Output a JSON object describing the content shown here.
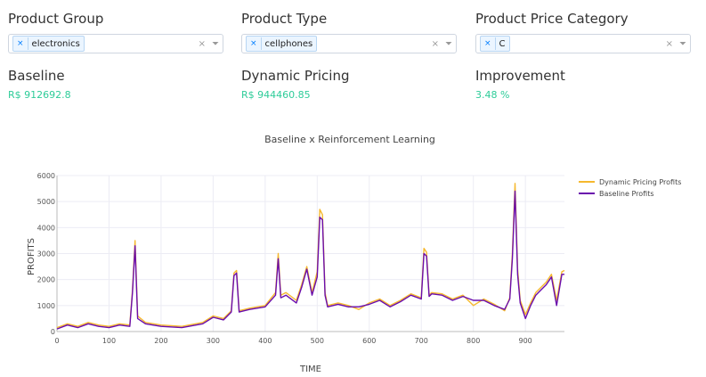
{
  "filters": [
    {
      "label": "Product Group",
      "selected": "electronics"
    },
    {
      "label": "Product Type",
      "selected": "cellphones"
    },
    {
      "label": "Product Price Category",
      "selected": "C"
    }
  ],
  "metrics": [
    {
      "label": "Baseline",
      "value": "R$ 912692.8"
    },
    {
      "label": "Dynamic Pricing",
      "value": "R$ 944460.85"
    },
    {
      "label": "Improvement",
      "value": "3.48 %"
    }
  ],
  "icons": {
    "remove": "×",
    "clear": "×",
    "dropdown": "⏷"
  },
  "colors": {
    "metric_value": "#2ecc99",
    "dynamic": "#f5b82e",
    "baseline": "#6a0dad"
  },
  "chart_data": {
    "type": "line",
    "title": "Baseline x Reinforcement Learning",
    "xlabel": "TIME",
    "ylabel": "PROFITS",
    "xlim": [
      0,
      975
    ],
    "ylim": [
      0,
      6000
    ],
    "xticks": [
      0,
      100,
      200,
      300,
      400,
      500,
      600,
      700,
      800,
      900
    ],
    "yticks": [
      0,
      1000,
      2000,
      3000,
      4000,
      5000,
      6000
    ],
    "grid": true,
    "legend": "top-right",
    "series": [
      {
        "name": "Dynamic Pricing Profits",
        "color": "#f5b82e",
        "x": [
          0,
          20,
          40,
          60,
          80,
          100,
          120,
          140,
          145,
          150,
          155,
          170,
          200,
          240,
          280,
          300,
          320,
          335,
          340,
          345,
          350,
          370,
          400,
          420,
          425,
          430,
          440,
          460,
          470,
          480,
          490,
          500,
          505,
          510,
          515,
          520,
          540,
          560,
          580,
          600,
          620,
          640,
          660,
          680,
          700,
          705,
          710,
          715,
          720,
          740,
          760,
          780,
          800,
          820,
          840,
          860,
          870,
          875,
          880,
          885,
          890,
          900,
          910,
          920,
          930,
          940,
          950,
          960,
          970,
          975
        ],
        "y": [
          150,
          300,
          200,
          350,
          250,
          200,
          300,
          250,
          1600,
          3500,
          600,
          350,
          250,
          200,
          350,
          600,
          500,
          800,
          2250,
          2350,
          800,
          900,
          1000,
          1500,
          3000,
          1400,
          1500,
          1200,
          1800,
          2500,
          1500,
          2300,
          4700,
          4500,
          1500,
          1000,
          1100,
          1000,
          850,
          1100,
          1250,
          1000,
          1200,
          1450,
          1300,
          3200,
          3050,
          1400,
          1500,
          1450,
          1250,
          1400,
          1000,
          1250,
          1050,
          800,
          1300,
          3000,
          5700,
          2400,
          1200,
          650,
          1100,
          1500,
          1700,
          1900,
          2200,
          1200,
          2300,
          2350
        ]
      },
      {
        "name": "Baseline Profits",
        "color": "#6a0dad",
        "x": [
          0,
          20,
          40,
          60,
          80,
          100,
          120,
          140,
          145,
          150,
          155,
          170,
          200,
          240,
          280,
          300,
          320,
          335,
          340,
          345,
          350,
          370,
          400,
          420,
          425,
          430,
          440,
          460,
          470,
          480,
          490,
          500,
          505,
          510,
          515,
          520,
          540,
          560,
          580,
          600,
          620,
          640,
          660,
          680,
          700,
          705,
          710,
          715,
          720,
          740,
          760,
          780,
          800,
          820,
          840,
          860,
          870,
          875,
          880,
          885,
          890,
          900,
          910,
          920,
          930,
          940,
          950,
          960,
          970,
          975
        ],
        "y": [
          100,
          250,
          150,
          300,
          200,
          150,
          250,
          200,
          1500,
          3300,
          500,
          300,
          200,
          150,
          300,
          550,
          450,
          750,
          2150,
          2250,
          750,
          850,
          950,
          1400,
          2800,
          1300,
          1400,
          1100,
          1700,
          2400,
          1400,
          2100,
          4400,
          4300,
          1400,
          950,
          1050,
          950,
          950,
          1050,
          1200,
          950,
          1150,
          1400,
          1250,
          3000,
          2900,
          1350,
          1450,
          1400,
          1200,
          1350,
          1200,
          1200,
          1000,
          850,
          1250,
          2800,
          5400,
          2200,
          1100,
          500,
          1000,
          1400,
          1600,
          1800,
          2100,
          1000,
          2200,
          2200
        ]
      }
    ]
  }
}
